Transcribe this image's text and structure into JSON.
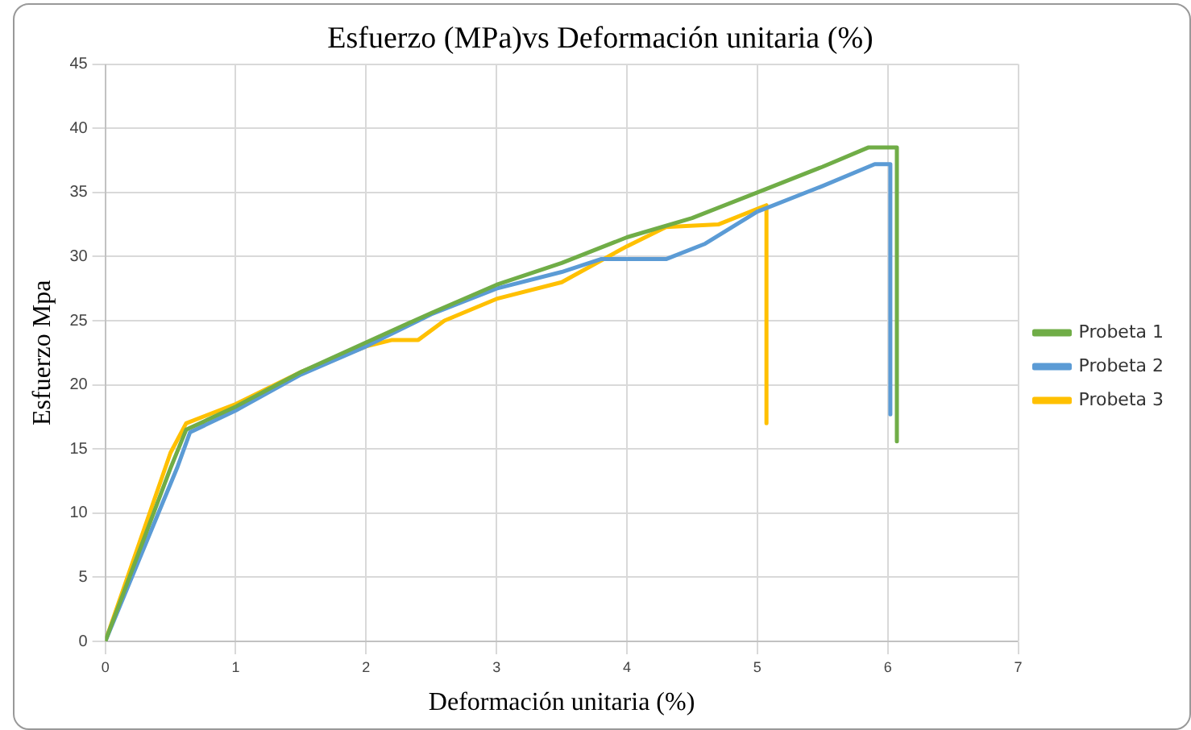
{
  "chart_data": {
    "type": "line",
    "title": "Esfuerzo (MPa)vs Deformación unitaria (%)",
    "xlabel": "Deformación unitaria (%)",
    "ylabel": "Esfuerzo Mpa",
    "series": [
      {
        "name": "Probeta 1",
        "color": "#70ad47",
        "x": [
          0,
          0.5,
          0.62,
          1,
          1.5,
          2,
          2.5,
          3,
          3.5,
          4,
          4.5,
          5,
          5.5,
          5.85,
          6.07,
          6.07
        ],
        "values": [
          0,
          13.5,
          16.5,
          18.3,
          21,
          23.3,
          25.6,
          27.8,
          29.5,
          31.5,
          33,
          35,
          37,
          38.5,
          38.5,
          15.6
        ]
      },
      {
        "name": "Probeta 2",
        "color": "#5b9bd5",
        "x": [
          0,
          0.55,
          0.65,
          1,
          1.5,
          2,
          2.5,
          3,
          3.5,
          3.8,
          4.3,
          4.6,
          5,
          5.5,
          5.9,
          6.02,
          6.02
        ],
        "values": [
          0,
          13.5,
          16.3,
          18,
          20.8,
          23,
          25.5,
          27.5,
          28.8,
          29.8,
          29.8,
          31,
          33.5,
          35.5,
          37.2,
          37.2,
          17.7
        ]
      },
      {
        "name": "Probeta 3",
        "color": "#ffc000",
        "x": [
          0,
          0.5,
          0.62,
          1,
          1.5,
          2,
          2.2,
          2.4,
          2.6,
          3,
          3.5,
          4,
          4.3,
          4.7,
          5.07,
          5.07
        ],
        "values": [
          0,
          14.7,
          17,
          18.5,
          21,
          23,
          23.5,
          23.5,
          25,
          26.7,
          28,
          30.8,
          32.3,
          32.5,
          34,
          17
        ]
      }
    ],
    "xlim": [
      0,
      7
    ],
    "xticks": [
      0,
      1,
      2,
      3,
      4,
      5,
      6,
      7
    ],
    "ylim": [
      0,
      45
    ],
    "yticks": [
      0,
      5,
      10,
      15,
      20,
      25,
      30,
      35,
      40,
      45
    ],
    "grid": true,
    "legend": "right",
    "marker": "none",
    "line_style": "solid"
  }
}
